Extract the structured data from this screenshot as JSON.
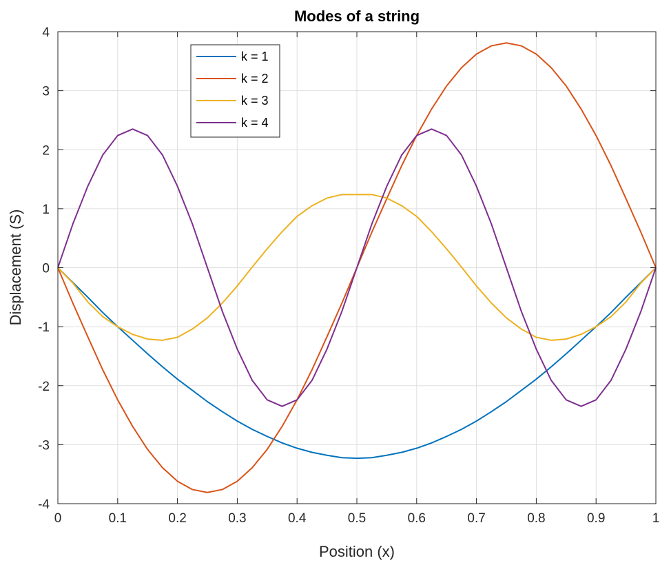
{
  "chart_data": {
    "type": "line",
    "title": "Modes of a string",
    "xlabel": "Position (x)",
    "ylabel": "Displacement (S)",
    "xlim": [
      0,
      1
    ],
    "ylim": [
      -4,
      4
    ],
    "xticks": [
      0,
      0.1,
      0.2,
      0.3,
      0.4,
      0.5,
      0.6,
      0.7,
      0.8,
      0.9,
      1
    ],
    "xtick_labels": [
      "0",
      "0.1",
      "0.2",
      "0.3",
      "0.4",
      "0.5",
      "0.6",
      "0.7",
      "0.8",
      "0.9",
      "1"
    ],
    "yticks": [
      -4,
      -3,
      -2,
      -1,
      0,
      1,
      2,
      3,
      4
    ],
    "ytick_labels": [
      "-4",
      "-3",
      "-2",
      "-1",
      "0",
      "1",
      "2",
      "3",
      "4"
    ],
    "grid": true,
    "legend_position": "top-left",
    "x": [
      0,
      0.025,
      0.05,
      0.075,
      0.1,
      0.125,
      0.15,
      0.175,
      0.2,
      0.225,
      0.25,
      0.275,
      0.3,
      0.325,
      0.35,
      0.375,
      0.4,
      0.425,
      0.45,
      0.475,
      0.5,
      0.525,
      0.55,
      0.575,
      0.6,
      0.625,
      0.65,
      0.675,
      0.7,
      0.725,
      0.75,
      0.775,
      0.8,
      0.825,
      0.85,
      0.875,
      0.9,
      0.925,
      0.95,
      0.975,
      1
    ],
    "series": [
      {
        "name": "k = 1",
        "color": "#0072BD",
        "values": [
          0,
          -0.25,
          -0.5,
          -0.76,
          -1.0,
          -1.23,
          -1.46,
          -1.68,
          -1.89,
          -2.08,
          -2.27,
          -2.44,
          -2.6,
          -2.74,
          -2.86,
          -2.97,
          -3.06,
          -3.13,
          -3.18,
          -3.22,
          -3.23,
          -3.22,
          -3.18,
          -3.13,
          -3.06,
          -2.97,
          -2.86,
          -2.74,
          -2.6,
          -2.44,
          -2.27,
          -2.08,
          -1.89,
          -1.68,
          -1.46,
          -1.23,
          -1.0,
          -0.76,
          -0.5,
          -0.25,
          0
        ]
      },
      {
        "name": "k = 2",
        "color": "#D95319",
        "values": [
          0,
          -0.6,
          -1.17,
          -1.73,
          -2.24,
          -2.69,
          -3.08,
          -3.39,
          -3.62,
          -3.76,
          -3.81,
          -3.76,
          -3.62,
          -3.39,
          -3.08,
          -2.69,
          -2.24,
          -1.73,
          -1.17,
          -0.6,
          0,
          0.6,
          1.17,
          1.73,
          2.24,
          2.69,
          3.08,
          3.39,
          3.62,
          3.76,
          3.81,
          3.76,
          3.62,
          3.39,
          3.08,
          2.69,
          2.24,
          1.73,
          1.17,
          0.6,
          0
        ]
      },
      {
        "name": "k = 3",
        "color": "#EDB120",
        "values": [
          0,
          -0.26,
          -0.58,
          -0.83,
          -1.0,
          -1.13,
          -1.21,
          -1.23,
          -1.18,
          -1.04,
          -0.85,
          -0.6,
          -0.31,
          0.01,
          0.32,
          0.61,
          0.87,
          1.05,
          1.18,
          1.24,
          1.24,
          1.24,
          1.18,
          1.05,
          0.87,
          0.61,
          0.32,
          0.01,
          -0.31,
          -0.6,
          -0.85,
          -1.04,
          -1.18,
          -1.23,
          -1.21,
          -1.13,
          -1.0,
          -0.83,
          -0.58,
          -0.26,
          0
        ]
      },
      {
        "name": "k = 4",
        "color": "#7E2F8E",
        "values": [
          0,
          0.74,
          1.38,
          1.91,
          2.24,
          2.35,
          2.24,
          1.91,
          1.38,
          0.74,
          0,
          -0.74,
          -1.38,
          -1.91,
          -2.24,
          -2.35,
          -2.24,
          -1.91,
          -1.38,
          -0.74,
          0,
          0.74,
          1.38,
          1.91,
          2.24,
          2.35,
          2.24,
          1.91,
          1.38,
          0.74,
          0,
          -0.74,
          -1.38,
          -1.91,
          -2.24,
          -2.35,
          -2.24,
          -1.91,
          -1.38,
          -0.74,
          0
        ]
      }
    ]
  }
}
